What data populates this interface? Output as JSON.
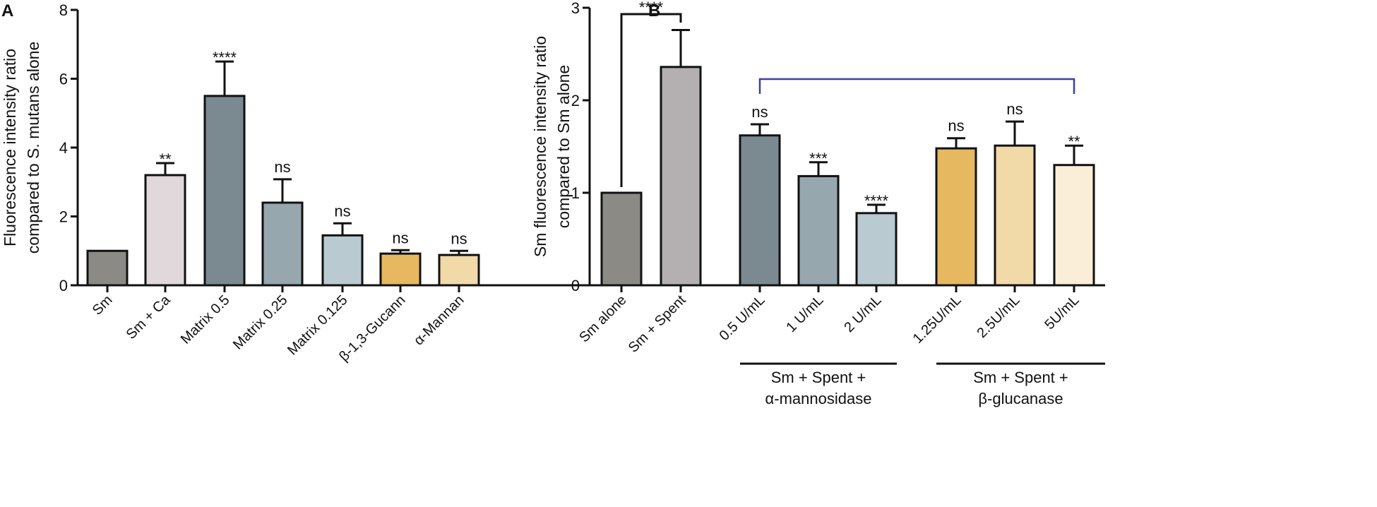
{
  "chart_data": [
    {
      "panel": "A",
      "type": "bar",
      "ylabel_lines": [
        "Fluorescence intensity ratio",
        "compared to S. mutans alone"
      ],
      "ylabel_italic": "S. mutans",
      "ylim": [
        0,
        8
      ],
      "yticks": [
        0,
        2,
        4,
        6,
        8
      ],
      "categories": [
        "Sm",
        "Sm + Ca",
        "Matrix 0.5",
        "Matrix 0.25",
        "Matrix 0.125",
        "β-1,3-Gucann",
        "α-Mannan"
      ],
      "values": [
        1.0,
        3.2,
        5.5,
        2.4,
        1.45,
        0.92,
        0.88
      ],
      "errors": [
        0,
        0.35,
        1.0,
        0.68,
        0.35,
        0.1,
        0.12
      ],
      "significance": [
        "",
        "**",
        "****",
        "ns",
        "ns",
        "ns",
        "ns"
      ],
      "colors": [
        "#8c8a85",
        "#e0d8da",
        "#7b8a91",
        "#96a7ae",
        "#b9cad0",
        "#e6b860",
        "#f1d9a8"
      ]
    },
    {
      "panel": "B",
      "type": "bar",
      "ylabel_lines": [
        "Sm fluorescence intensity ratio",
        "compared to Sm alone"
      ],
      "ylim": [
        0,
        3
      ],
      "yticks": [
        0,
        1,
        2,
        3
      ],
      "categories": [
        "Sm alone",
        "Sm + Spent",
        "0.5 U/mL",
        "1 U/mL",
        "2 U/mL",
        "1.25U/mL",
        "2.5U/mL",
        "5U/mL"
      ],
      "values": [
        1.0,
        2.36,
        1.62,
        1.18,
        0.78,
        1.48,
        1.51,
        1.3
      ],
      "errors": [
        0,
        0.4,
        0.12,
        0.15,
        0.09,
        0.11,
        0.26,
        0.21
      ],
      "significance": [
        "",
        "",
        "ns",
        "***",
        "****",
        "ns",
        "ns",
        "**"
      ],
      "colors": [
        "#8c8a85",
        "#b4afb1",
        "#7b8a91",
        "#96a7ae",
        "#b9cad0",
        "#e6b860",
        "#f1d9a8",
        "#faeed9"
      ],
      "bracket_label": "****",
      "bracket_color": "#3b3fa8",
      "groups": [
        {
          "line1": "Sm + Spent +",
          "line2": "α-mannosidase"
        },
        {
          "line1": "Sm + Spent +",
          "line2": "β-glucanase"
        }
      ]
    }
  ]
}
